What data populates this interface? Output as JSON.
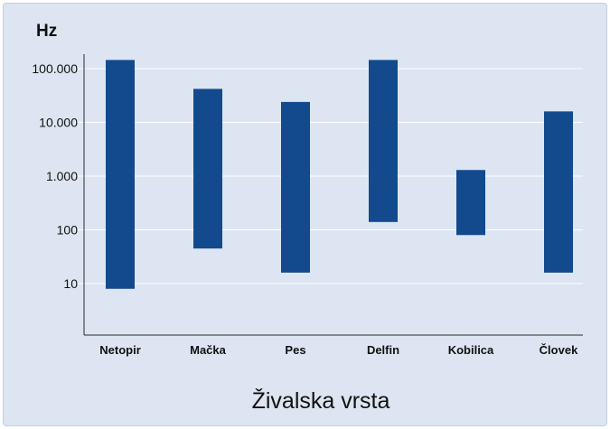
{
  "chart_data": {
    "type": "bar",
    "subtype": "range",
    "unit_label": "Hz",
    "xlabel": "Živalska vrsta",
    "ylabel": "",
    "yscale": "log",
    "ylim": [
      2,
      160000
    ],
    "grid": true,
    "bar_color": "#134a8e",
    "grid_color": "#ffffff",
    "background_color": "#dce5f1",
    "y_ticks": [
      {
        "value": 10,
        "label": "10"
      },
      {
        "value": 100,
        "label": "100"
      },
      {
        "value": 1000,
        "label": "1.000"
      },
      {
        "value": 10000,
        "label": "10.000"
      },
      {
        "value": 100000,
        "label": "100.000"
      }
    ],
    "categories": [
      "Netopir",
      "Mačka",
      "Pes",
      "Delfin",
      "Kobilica",
      "Človek"
    ],
    "ranges": [
      {
        "low": 8,
        "high": 145000
      },
      {
        "low": 45,
        "high": 42000
      },
      {
        "low": 16,
        "high": 24000
      },
      {
        "low": 140,
        "high": 145000
      },
      {
        "low": 80,
        "high": 1300
      },
      {
        "low": 16,
        "high": 16000
      }
    ]
  }
}
